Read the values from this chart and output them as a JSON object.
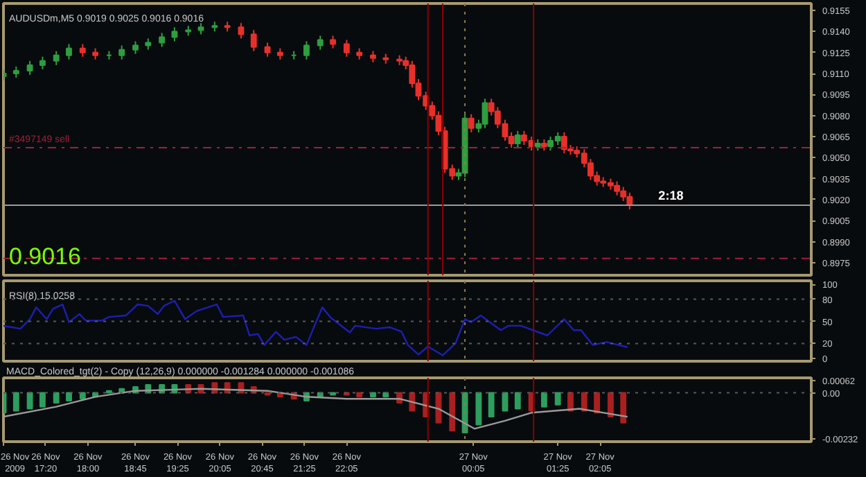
{
  "chart_data": [
    {
      "type": "candlestick",
      "title": "AUDUSDm,M5  0.9019 0.9025 0.9016 0.9016",
      "x": [
        "2009-11-26T16:40",
        "2009-11-26T16:52",
        "2009-11-26T17:05",
        "2009-11-26T17:17",
        "2009-11-26T17:30",
        "2009-11-26T17:42",
        "2009-11-26T17:55",
        "2009-11-26T18:07",
        "2009-11-26T18:20",
        "2009-11-26T18:32",
        "2009-11-26T18:45",
        "2009-11-26T18:57",
        "2009-11-26T19:10",
        "2009-11-26T19:22",
        "2009-11-26T19:35",
        "2009-11-26T19:47",
        "2009-11-26T20:00",
        "2009-11-26T20:12",
        "2009-11-26T20:25",
        "2009-11-26T20:37",
        "2009-11-26T20:50",
        "2009-11-26T21:02",
        "2009-11-26T21:15",
        "2009-11-26T21:27",
        "2009-11-26T21:40",
        "2009-11-26T21:52",
        "2009-11-26T22:05",
        "2009-11-26T22:17",
        "2009-11-26T22:30",
        "2009-11-26T22:42",
        "2009-11-26T22:55",
        "2009-11-26T23:01",
        "2009-11-26T23:07",
        "2009-11-26T23:13",
        "2009-11-26T23:20",
        "2009-11-26T23:26",
        "2009-11-26T23:32",
        "2009-11-26T23:38",
        "2009-11-26T23:45",
        "2009-11-26T23:51",
        "2009-11-26T23:57",
        "2009-11-27T00:03",
        "2009-11-27T00:10",
        "2009-11-27T00:16",
        "2009-11-27T00:22",
        "2009-11-27T00:28",
        "2009-11-27T00:35",
        "2009-11-27T00:41",
        "2009-11-27T00:47",
        "2009-11-27T00:53",
        "2009-11-27T01:00",
        "2009-11-27T01:06",
        "2009-11-27T01:12",
        "2009-11-27T01:18",
        "2009-11-27T01:25",
        "2009-11-27T01:31",
        "2009-11-27T01:37",
        "2009-11-27T01:43",
        "2009-11-27T01:50",
        "2009-11-27T01:56",
        "2009-11-27T02:02",
        "2009-11-27T02:08",
        "2009-11-27T02:15",
        "2009-11-27T02:21",
        "2009-11-27T02:27",
        "2009-11-27T02:33"
      ],
      "ohlc": [
        [
          0.9108,
          0.9113,
          0.9105,
          0.911
        ],
        [
          0.911,
          0.9115,
          0.9107,
          0.9112
        ],
        [
          0.9112,
          0.9119,
          0.9109,
          0.9116
        ],
        [
          0.9116,
          0.9122,
          0.9113,
          0.9119
        ],
        [
          0.9119,
          0.9126,
          0.9116,
          0.9123
        ],
        [
          0.9123,
          0.9131,
          0.912,
          0.9128
        ],
        [
          0.9128,
          0.9131,
          0.9122,
          0.9125
        ],
        [
          0.9125,
          0.9128,
          0.912,
          0.9123
        ],
        [
          0.9123,
          0.9126,
          0.912,
          0.9123
        ],
        [
          0.9123,
          0.913,
          0.912,
          0.9127
        ],
        [
          0.9127,
          0.9133,
          0.9124,
          0.913
        ],
        [
          0.913,
          0.9135,
          0.9127,
          0.9132
        ],
        [
          0.9132,
          0.9139,
          0.9129,
          0.9136
        ],
        [
          0.9136,
          0.9143,
          0.9133,
          0.914
        ],
        [
          0.914,
          0.9144,
          0.9137,
          0.9141
        ],
        [
          0.9141,
          0.9146,
          0.9138,
          0.9143
        ],
        [
          0.9143,
          0.9147,
          0.914,
          0.9144
        ],
        [
          0.9144,
          0.9147,
          0.914,
          0.9143
        ],
        [
          0.9143,
          0.9146,
          0.9135,
          0.9138
        ],
        [
          0.9138,
          0.9141,
          0.9126,
          0.9129
        ],
        [
          0.9129,
          0.9132,
          0.9122,
          0.9125
        ],
        [
          0.9125,
          0.9128,
          0.912,
          0.9123
        ],
        [
          0.9123,
          0.9126,
          0.912,
          0.9123
        ],
        [
          0.9123,
          0.9133,
          0.912,
          0.913
        ],
        [
          0.913,
          0.9137,
          0.9127,
          0.9134
        ],
        [
          0.9134,
          0.9137,
          0.9128,
          0.9131
        ],
        [
          0.9131,
          0.9134,
          0.9122,
          0.9125
        ],
        [
          0.9125,
          0.9128,
          0.912,
          0.9123
        ],
        [
          0.9123,
          0.9126,
          0.9118,
          0.9121
        ],
        [
          0.9121,
          0.9124,
          0.9117,
          0.912
        ],
        [
          0.912,
          0.9123,
          0.9116,
          0.9119
        ],
        [
          0.9119,
          0.9122,
          0.9113,
          0.9116
        ],
        [
          0.9116,
          0.9119,
          0.91,
          0.9103
        ],
        [
          0.9103,
          0.9106,
          0.9091,
          0.9094
        ],
        [
          0.9094,
          0.9097,
          0.9084,
          0.9087
        ],
        [
          0.9087,
          0.909,
          0.9077,
          0.908
        ],
        [
          0.908,
          0.9083,
          0.9066,
          0.9069
        ],
        [
          0.9069,
          0.9072,
          0.9039,
          0.9042
        ],
        [
          0.9042,
          0.9045,
          0.9034,
          0.9037
        ],
        [
          0.9037,
          0.9042,
          0.9034,
          0.9039
        ],
        [
          0.9039,
          0.9081,
          0.9036,
          0.9078
        ],
        [
          0.9078,
          0.9081,
          0.9068,
          0.9071
        ],
        [
          0.9071,
          0.9077,
          0.9068,
          0.9074
        ],
        [
          0.9074,
          0.9092,
          0.9071,
          0.9089
        ],
        [
          0.9089,
          0.9092,
          0.908,
          0.9083
        ],
        [
          0.9083,
          0.9086,
          0.9071,
          0.9074
        ],
        [
          0.9074,
          0.9077,
          0.9062,
          0.9065
        ],
        [
          0.9065,
          0.9068,
          0.9057,
          0.906
        ],
        [
          0.906,
          0.9069,
          0.9057,
          0.9066
        ],
        [
          0.9066,
          0.9069,
          0.9059,
          0.9062
        ],
        [
          0.9062,
          0.9065,
          0.9055,
          0.9058
        ],
        [
          0.9058,
          0.9063,
          0.9055,
          0.906
        ],
        [
          0.906,
          0.9063,
          0.9055,
          0.9058
        ],
        [
          0.9058,
          0.9065,
          0.9055,
          0.9062
        ],
        [
          0.9062,
          0.9068,
          0.9059,
          0.9065
        ],
        [
          0.9065,
          0.9068,
          0.9053,
          0.9056
        ],
        [
          0.9056,
          0.9059,
          0.9052,
          0.9055
        ],
        [
          0.9055,
          0.9058,
          0.905,
          0.9053
        ],
        [
          0.9053,
          0.9056,
          0.9043,
          0.9046
        ],
        [
          0.9046,
          0.9049,
          0.9034,
          0.9037
        ],
        [
          0.9037,
          0.904,
          0.903,
          0.9033
        ],
        [
          0.9033,
          0.9036,
          0.9029,
          0.9032
        ],
        [
          0.9032,
          0.9035,
          0.9027,
          0.903
        ],
        [
          0.903,
          0.9033,
          0.9023,
          0.9026
        ],
        [
          0.9026,
          0.9029,
          0.9019,
          0.9022
        ],
        [
          0.9022,
          0.9025,
          0.9013,
          0.9016
        ]
      ],
      "colors": [
        "#2e9e3e",
        "#2e9e3e",
        "#2e9e3e",
        "#2e9e3e",
        "#2e9e3e",
        "#2e9e3e",
        "#e8302a",
        "#e8302a",
        "#2e9e3e",
        "#2e9e3e",
        "#2e9e3e",
        "#2e9e3e",
        "#2e9e3e",
        "#2e9e3e",
        "#2e9e3e",
        "#2e9e3e",
        "#2e9e3e",
        "#e8302a",
        "#e8302a",
        "#e8302a",
        "#e8302a",
        "#e8302a",
        "#2e9e3e",
        "#2e9e3e",
        "#2e9e3e",
        "#e8302a",
        "#e8302a",
        "#e8302a",
        "#e8302a",
        "#e8302a",
        "#e8302a",
        "#e8302a",
        "#e8302a",
        "#e8302a",
        "#e8302a",
        "#e8302a",
        "#e8302a",
        "#e8302a",
        "#e8302a",
        "#2e9e3e",
        "#2e9e3e",
        "#e8302a",
        "#2e9e3e",
        "#2e9e3e",
        "#e8302a",
        "#e8302a",
        "#e8302a",
        "#e8302a",
        "#2e9e3e",
        "#e8302a",
        "#e8302a",
        "#2e9e3e",
        "#e8302a",
        "#2e9e3e",
        "#2e9e3e",
        "#e8302a",
        "#e8302a",
        "#e8302a",
        "#e8302a",
        "#e8302a",
        "#e8302a",
        "#e8302a",
        "#e8302a",
        "#e8302a",
        "#e8302a",
        "#e8302a"
      ],
      "xlim": [
        "2009-11-26T16:40",
        "2009-11-27T05:25"
      ],
      "ylim": [
        0.8966,
        0.916
      ],
      "yticks": [
        0.9155,
        {
          "value": 0.914,
          "label": "0.9140"
        },
        0.9125,
        {
          "value": 0.911,
          "label": "0.9110"
        },
        0.9095,
        {
          "value": 0.908,
          "label": "0.9080"
        },
        0.9065,
        {
          "value": 0.905,
          "label": "0.9050"
        },
        0.9035,
        {
          "value": 0.902,
          "label": "0.9020"
        },
        0.9005,
        {
          "value": 0.899,
          "label": "0.8990"
        },
        0.8975
      ],
      "tick_labels": "y",
      "ref_lines": [
        {
          "axis": "y",
          "value": 0.9016,
          "color": "#9a9a9a",
          "line_style": "solid"
        },
        {
          "axis": "y",
          "value": 0.9057,
          "label": "#3497149 sell",
          "color": "#a0203a",
          "line_style": "dashdot"
        },
        {
          "axis": "y",
          "value": 0.8978,
          "color": "#a0203a",
          "line_style": "dashdot"
        },
        {
          "axis": "x",
          "value": "2009-11-26T23:22",
          "color": "#8b0000",
          "line_style": "solid"
        },
        {
          "axis": "x",
          "value": "2009-11-26T23:36",
          "color": "#8b0000",
          "line_style": "solid"
        },
        {
          "axis": "x",
          "value": "2009-11-26T23:57",
          "color": "#8a7a50",
          "line_style": "dotted"
        },
        {
          "axis": "x",
          "value": "2009-11-27T01:02",
          "color": "#8b0000",
          "line_style": "solid"
        }
      ],
      "annotations": [
        {
          "text": "2:18",
          "x": "2009-11-27T02:55",
          "y": 0.9016
        },
        "0.9016"
      ]
    },
    {
      "type": "line",
      "title": "RSI(8) 15.0258",
      "x": [
        "2009-11-26T16:40",
        "2009-11-26T16:56",
        "2009-11-26T17:05",
        "2009-11-26T17:11",
        "2009-11-26T17:21",
        "2009-11-26T17:27",
        "2009-11-26T17:36",
        "2009-11-26T17:42",
        "2009-11-26T17:52",
        "2009-11-26T17:58",
        "2009-11-26T18:13",
        "2009-11-26T18:20",
        "2009-11-26T18:36",
        "2009-11-26T18:47",
        "2009-11-26T18:57",
        "2009-11-26T19:06",
        "2009-11-26T19:12",
        "2009-11-26T19:22",
        "2009-11-26T19:32",
        "2009-11-26T19:43",
        "2009-11-26T20:02",
        "2009-11-26T20:08",
        "2009-11-26T20:27",
        "2009-11-26T20:33",
        "2009-11-26T20:41",
        "2009-11-26T20:47",
        "2009-11-26T20:58",
        "2009-11-26T21:06",
        "2009-11-26T21:17",
        "2009-11-26T21:27",
        "2009-11-26T21:36",
        "2009-11-26T21:42",
        "2009-11-26T21:50",
        "2009-11-26T22:08",
        "2009-11-26T22:13",
        "2009-11-26T22:33",
        "2009-11-26T22:46",
        "2009-11-26T22:57",
        "2009-11-26T23:03",
        "2009-11-26T23:13",
        "2009-11-26T23:22",
        "2009-11-26T23:36",
        "2009-11-26T23:48",
        "2009-11-26T23:57",
        "2009-11-27T00:03",
        "2009-11-27T00:12",
        "2009-11-27T00:31",
        "2009-11-27T00:38",
        "2009-11-27T00:50",
        "2009-11-27T01:15",
        "2009-11-27T01:31",
        "2009-11-27T01:40",
        "2009-11-27T01:47",
        "2009-11-27T01:58",
        "2009-11-27T02:11",
        "2009-11-27T02:31"
      ],
      "series": [
        {
          "color": "#1e1eb4",
          "values": [
            44,
            40,
            53,
            69,
            53,
            67,
            73,
            49,
            60,
            51,
            51,
            56,
            58,
            73,
            71,
            60,
            71,
            78,
            53,
            64,
            73,
            56,
            58,
            31,
            33,
            18,
            36,
            25,
            29,
            18,
            49,
            69,
            55,
            35,
            44,
            40,
            42,
            36,
            18,
            5,
            16,
            4,
            20,
            53,
            49,
            58,
            38,
            44,
            44,
            31,
            53,
            38,
            38,
            18,
            22,
            15
          ]
        }
      ],
      "xlim": [
        "2009-11-26T16:40",
        "2009-11-27T05:25"
      ],
      "ylim": [
        -4,
        105
      ],
      "yticks": [
        100,
        80,
        50,
        20,
        0
      ],
      "tick_labels": "y",
      "ref_lines": [
        {
          "axis": "y",
          "value": 80,
          "color": "#5a5a5a",
          "line_style": "dotted"
        },
        {
          "axis": "y",
          "value": 50,
          "color": "#5a5a5a",
          "line_style": "dotted"
        },
        {
          "axis": "y",
          "value": 20,
          "color": "#5a5a5a",
          "line_style": "dotted"
        },
        {
          "axis": "x",
          "value": "2009-11-26T23:22",
          "color": "#8b0000",
          "line_style": "solid"
        },
        {
          "axis": "x",
          "value": "2009-11-26T23:57",
          "color": "#8a7a50",
          "line_style": "dotted"
        },
        {
          "axis": "x",
          "value": "2009-11-27T01:02",
          "color": "#8b0000",
          "line_style": "solid"
        }
      ]
    },
    {
      "type": "bar",
      "title": "MACD_Colored_tgt(2) - Copy (12,26,9) 0.000000 -0.001284 0.000000 -0.001086",
      "series": [
        {
          "type": "bar",
          "x": [
            "2009-11-26T16:40",
            "2009-11-26T16:52",
            "2009-11-26T17:05",
            "2009-11-26T17:17",
            "2009-11-26T17:30",
            "2009-11-26T17:42",
            "2009-11-26T17:55",
            "2009-11-26T18:07",
            "2009-11-26T18:20",
            "2009-11-26T18:32",
            "2009-11-26T18:45",
            "2009-11-26T18:57",
            "2009-11-26T19:10",
            "2009-11-26T19:22",
            "2009-11-26T19:35",
            "2009-11-26T19:47",
            "2009-11-26T20:00",
            "2009-11-26T20:12",
            "2009-11-26T20:25",
            "2009-11-26T20:37",
            "2009-11-26T20:50",
            "2009-11-26T21:02",
            "2009-11-26T21:15",
            "2009-11-26T21:27",
            "2009-11-26T21:40",
            "2009-11-26T21:52",
            "2009-11-26T22:05",
            "2009-11-26T22:17",
            "2009-11-26T22:30",
            "2009-11-26T22:42",
            "2009-11-26T22:55",
            "2009-11-26T23:07",
            "2009-11-26T23:20",
            "2009-11-26T23:32",
            "2009-11-26T23:45",
            "2009-11-26T23:57",
            "2009-11-27T00:10",
            "2009-11-27T00:22",
            "2009-11-27T00:35",
            "2009-11-27T00:47",
            "2009-11-27T01:00",
            "2009-11-27T01:12",
            "2009-11-27T01:25",
            "2009-11-27T01:37",
            "2009-11-27T01:50",
            "2009-11-27T02:02",
            "2009-11-27T02:15",
            "2009-11-27T02:27"
          ],
          "values": [
            -0.001,
            -0.0009,
            -0.0008,
            -0.0007,
            -0.0005,
            -0.0004,
            -0.0003,
            -0.0002,
            0.0001,
            0.0002,
            0.0003,
            0.0004,
            0.0004,
            0.0004,
            0.0004,
            0.0004,
            0.0005,
            0.0005,
            0.0005,
            0.0003,
            -0.0001,
            -0.0002,
            -0.0003,
            -0.0004,
            -0.0002,
            -0.0001,
            -0.0001,
            -0.0002,
            -0.0002,
            -0.0002,
            -0.0005,
            -0.0009,
            -0.0012,
            -0.0015,
            -0.0019,
            -0.002,
            -0.0016,
            -0.0012,
            -0.0009,
            -0.0008,
            -0.0009,
            -0.0007,
            -0.0006,
            -0.0009,
            -0.0009,
            -0.001,
            -0.0012,
            -0.0015
          ],
          "colors": [
            "#2e9e5e",
            "#2e9e5e",
            "#2e9e5e",
            "#2e9e5e",
            "#2e9e5e",
            "#2e9e5e",
            "#2e9e5e",
            "#2e9e5e",
            "#2e9e5e",
            "#2e9e5e",
            "#2e9e5e",
            "#2e9e5e",
            "#2e9e5e",
            "#2e9e5e",
            "#a82020",
            "#a82020",
            "#a82020",
            "#a82020",
            "#a82020",
            "#a82020",
            "#a82020",
            "#a82020",
            "#a82020",
            "#2e9e5e",
            "#2e9e5e",
            "#2e9e5e",
            "#a82020",
            "#a82020",
            "#2e9e5e",
            "#2e9e5e",
            "#a82020",
            "#a82020",
            "#a82020",
            "#a82020",
            "#a82020",
            "#2e9e5e",
            "#2e9e5e",
            "#2e9e5e",
            "#2e9e5e",
            "#2e9e5e",
            "#a82020",
            "#2e9e5e",
            "#2e9e5e",
            "#a82020",
            "#a82020",
            "#a82020",
            "#a82020",
            "#a82020"
          ]
        },
        {
          "type": "line",
          "color": "#9a9a9a",
          "x": [
            "2009-11-26T16:40",
            "2009-11-26T17:30",
            "2009-11-26T18:07",
            "2009-11-26T18:45",
            "2009-11-26T19:47",
            "2009-11-26T20:50",
            "2009-11-26T21:27",
            "2009-11-26T22:05",
            "2009-11-26T22:55",
            "2009-11-26T23:32",
            "2009-11-27T00:06",
            "2009-11-27T00:35",
            "2009-11-27T01:00",
            "2009-11-27T01:46",
            "2009-11-27T02:31"
          ],
          "values": [
            -0.0012,
            -0.0007,
            -0.0002,
            0.0001,
            0.0002,
            0.0001,
            -0.0002,
            -0.0003,
            -0.0003,
            -0.0008,
            -0.0018,
            -0.0014,
            -0.001,
            -0.0008,
            -0.0012
          ]
        }
      ],
      "xlim": [
        "2009-11-26T16:40",
        "2009-11-27T05:25"
      ],
      "ylim": [
        -0.00245,
        0.00075
      ],
      "yticks": [
        0.00062,
        {
          "value": 0,
          "label": "0.00"
        },
        -0.00232
      ],
      "xticks": [
        {
          "value": "2009-11-26T16:40",
          "label": "26 Nov 2009"
        },
        {
          "value": "2009-11-26T17:20",
          "label": "26 Nov 17:20"
        },
        {
          "value": "2009-11-26T18:00",
          "label": "26 Nov 18:00"
        },
        {
          "value": "2009-11-26T18:45",
          "label": "26 Nov 18:45"
        },
        {
          "value": "2009-11-26T19:25",
          "label": "26 Nov 19:25"
        },
        {
          "value": "2009-11-26T20:05",
          "label": "26 Nov 20:05"
        },
        {
          "value": "2009-11-26T20:45",
          "label": "26 Nov 20:45"
        },
        {
          "value": "2009-11-26T21:25",
          "label": "26 Nov 21:25"
        },
        {
          "value": "2009-11-26T22:05",
          "label": "26 Nov 22:05"
        },
        {
          "value": "2009-11-27T00:05",
          "label": "27 Nov 00:05"
        },
        {
          "value": "2009-11-27T01:25",
          "label": "27 Nov 01:25"
        },
        {
          "value": "2009-11-27T02:05",
          "label": "27 Nov 02:05"
        }
      ],
      "ref_lines": [
        {
          "axis": "y",
          "value": 0,
          "color": "#5a5a5a",
          "line_style": "dotted"
        },
        {
          "axis": "x",
          "value": "2009-11-26T23:22",
          "color": "#8b0000",
          "line_style": "solid"
        },
        {
          "axis": "x",
          "value": "2009-11-26T23:57",
          "color": "#8a7a50",
          "line_style": "dotted"
        },
        {
          "axis": "x",
          "value": "2009-11-27T01:02",
          "color": "#8b0000",
          "line_style": "solid"
        }
      ]
    }
  ]
}
